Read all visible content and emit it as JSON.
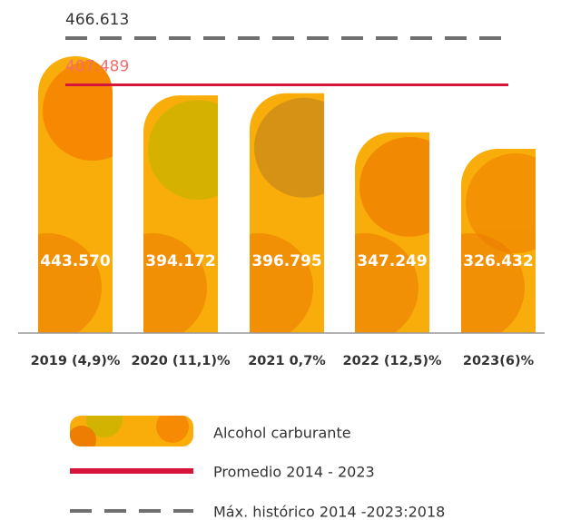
{
  "chart_data": {
    "type": "bar",
    "categories": [
      "2019 (4,9)%",
      "2020 (11,1)%",
      "2021 0,7%",
      "2022 (12,5)%",
      "2023(6)%"
    ],
    "series": [
      {
        "name": "Alcohol carburante",
        "color": "#f9ad0a",
        "values": [
          443570,
          394172,
          396795,
          347249,
          326432
        ],
        "value_labels": [
          "443.570",
          "394.172",
          "396.795",
          "347.249",
          "326.432"
        ]
      }
    ],
    "reference_lines": [
      {
        "name": "Promedio 2014 - 2023",
        "value": 407489,
        "label": "407.489",
        "color": "#d6153a",
        "style": "solid"
      },
      {
        "name": "Máx. histórico 2014 -2023:2018",
        "value": 466613,
        "label": "466.613",
        "color": "#707070",
        "style": "dashed"
      }
    ]
  }
}
